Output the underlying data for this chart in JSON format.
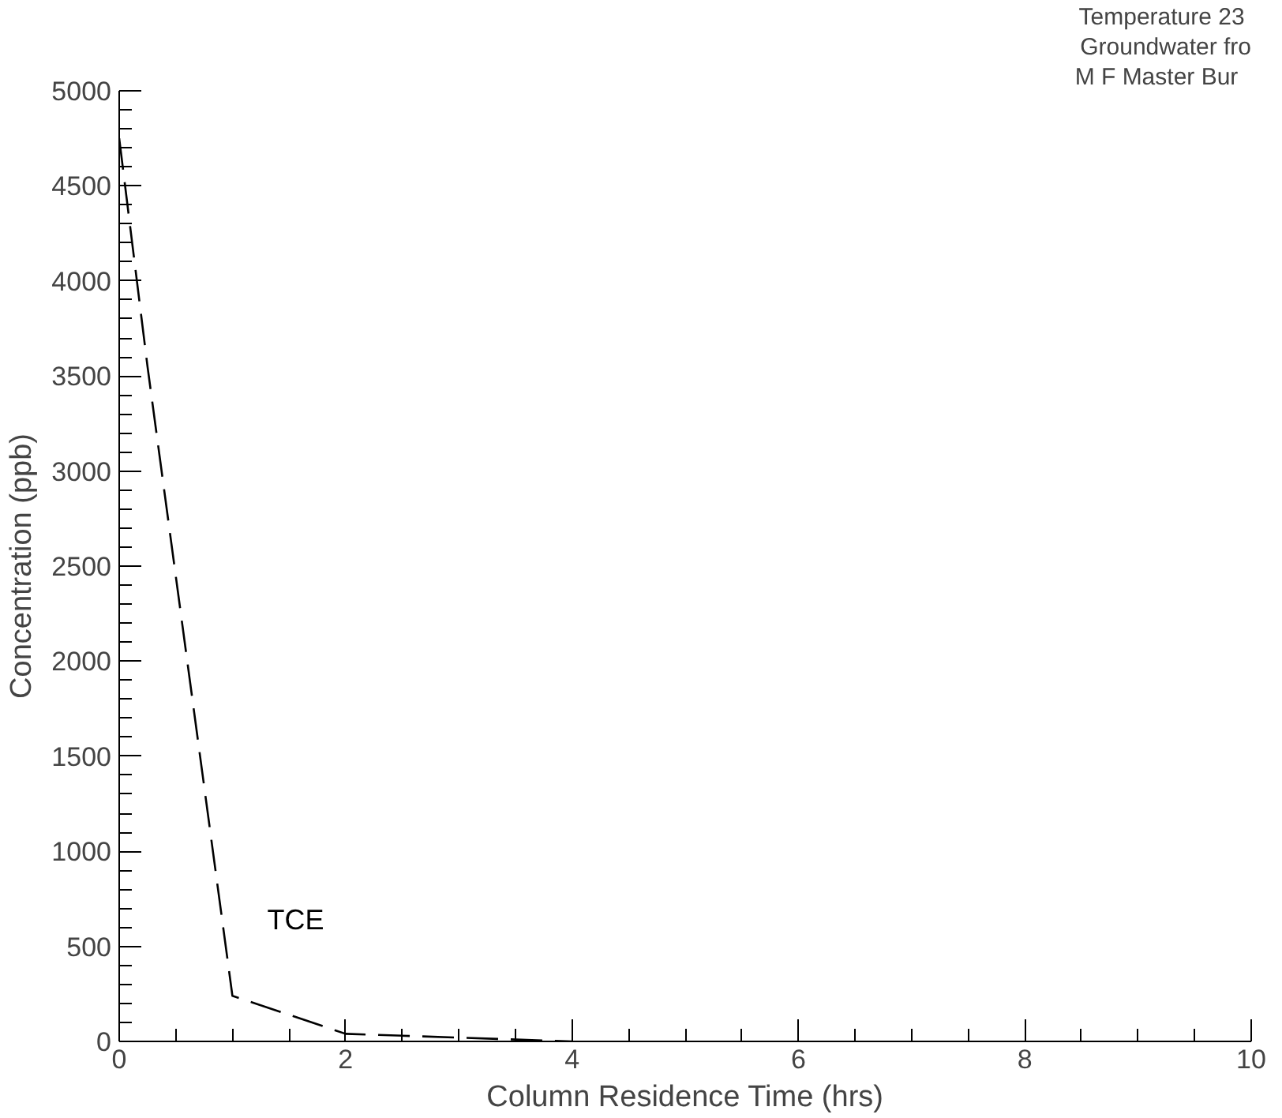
{
  "chart_data": {
    "type": "line",
    "xlabel": "Column Residence Time (hrs)",
    "ylabel": "Concentration (ppb)",
    "annotations": [
      "Temperature  23",
      "Groundwater fro",
      "M   F Master Bur"
    ],
    "series": [
      {
        "name": "TCE",
        "color": "#000000",
        "x": [
          0,
          0.25,
          1,
          2,
          3,
          4
        ],
        "values": [
          4750,
          3550,
          240,
          40,
          20,
          0
        ]
      }
    ],
    "xlim": [
      0,
      10
    ],
    "xticks": [
      0,
      2,
      4,
      6,
      8,
      10
    ],
    "ylim": [
      0,
      5000
    ],
    "yticks": [
      0,
      500,
      1000,
      1500,
      2000,
      2500,
      3000,
      3500,
      4000,
      4500,
      5000
    ],
    "grid": false,
    "legend": false,
    "line_style": "dashed",
    "marker": "none"
  }
}
